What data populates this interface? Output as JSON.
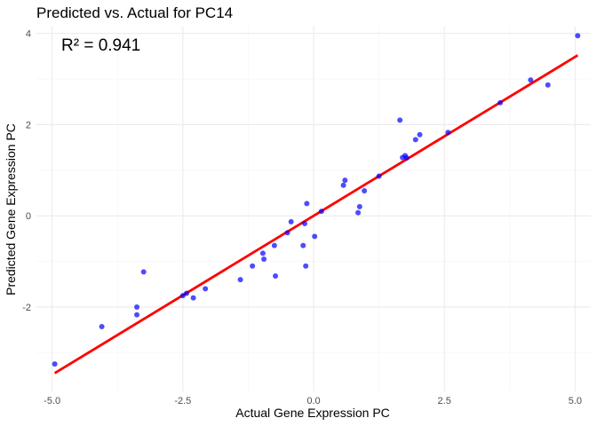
{
  "chart_data": {
    "type": "scatter",
    "title": "Predicted vs. Actual for PC14",
    "xlabel": "Actual Gene Expression PC",
    "ylabel": "Predicted Gene Expression PC",
    "annotation": "R² = 0.941",
    "xlim": [
      -5.3,
      5.3
    ],
    "ylim": [
      -3.85,
      4.15
    ],
    "x_ticks": [
      -5.0,
      -2.5,
      0.0,
      2.5,
      5.0
    ],
    "x_tick_labels": [
      "-5.0",
      "-2.5",
      "0.0",
      "2.5",
      "5.0"
    ],
    "y_ticks": [
      -2,
      0,
      2,
      4
    ],
    "y_tick_labels": [
      "-2",
      "0",
      "2",
      "4"
    ],
    "grid": true,
    "point_color": "#0000ff",
    "line_color": "#ff0000",
    "fit_line": {
      "x": [
        -4.95,
        5.05
      ],
      "y": [
        -3.45,
        3.52
      ]
    },
    "points": [
      {
        "x": -4.95,
        "y": -3.25
      },
      {
        "x": -4.05,
        "y": -2.43
      },
      {
        "x": -3.38,
        "y": -2.0
      },
      {
        "x": -3.38,
        "y": -2.17
      },
      {
        "x": -3.25,
        "y": -1.23
      },
      {
        "x": -2.5,
        "y": -1.75
      },
      {
        "x": -2.43,
        "y": -1.7
      },
      {
        "x": -2.3,
        "y": -1.8
      },
      {
        "x": -2.07,
        "y": -1.6
      },
      {
        "x": -1.4,
        "y": -1.4
      },
      {
        "x": -1.17,
        "y": -1.1
      },
      {
        "x": -0.97,
        "y": -0.82
      },
      {
        "x": -0.95,
        "y": -0.95
      },
      {
        "x": -0.73,
        "y": -1.32
      },
      {
        "x": -0.75,
        "y": -0.65
      },
      {
        "x": -0.5,
        "y": -0.37
      },
      {
        "x": -0.43,
        "y": -0.13
      },
      {
        "x": -0.2,
        "y": -0.65
      },
      {
        "x": -0.17,
        "y": -0.17
      },
      {
        "x": -0.13,
        "y": 0.27
      },
      {
        "x": -0.15,
        "y": -1.1
      },
      {
        "x": 0.02,
        "y": -0.45
      },
      {
        "x": 0.15,
        "y": 0.1
      },
      {
        "x": 0.57,
        "y": 0.67
      },
      {
        "x": 0.6,
        "y": 0.78
      },
      {
        "x": 0.85,
        "y": 0.07
      },
      {
        "x": 0.88,
        "y": 0.2
      },
      {
        "x": 0.97,
        "y": 0.55
      },
      {
        "x": 1.25,
        "y": 0.87
      },
      {
        "x": 1.65,
        "y": 2.1
      },
      {
        "x": 1.7,
        "y": 1.28
      },
      {
        "x": 1.75,
        "y": 1.32
      },
      {
        "x": 1.78,
        "y": 1.27
      },
      {
        "x": 1.95,
        "y": 1.67
      },
      {
        "x": 2.03,
        "y": 1.78
      },
      {
        "x": 2.57,
        "y": 1.83
      },
      {
        "x": 3.57,
        "y": 2.48
      },
      {
        "x": 4.15,
        "y": 2.98
      },
      {
        "x": 4.48,
        "y": 2.87
      },
      {
        "x": 5.05,
        "y": 3.95
      }
    ]
  }
}
